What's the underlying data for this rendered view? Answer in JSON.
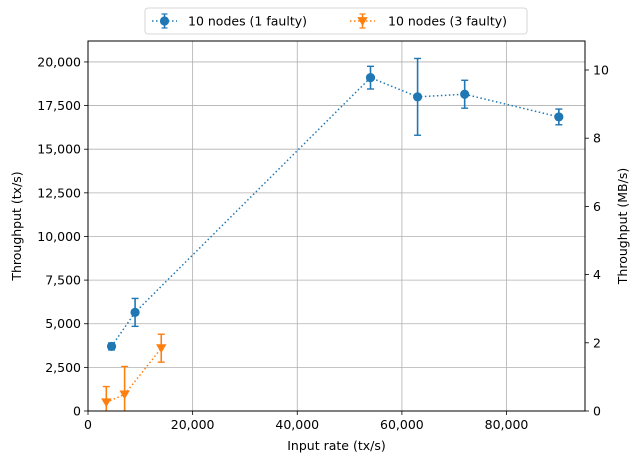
{
  "chart_data": {
    "type": "scatter",
    "title": "",
    "xlabel": "Input rate (tx/s)",
    "ylabel": "Throughput (tx/s)",
    "ylabel_right": "Throughput (MB/s)",
    "xlim": [
      0,
      95000
    ],
    "ylim": [
      0,
      21200
    ],
    "ylim_right": [
      0,
      10.85
    ],
    "x_ticks": [
      0,
      20000,
      40000,
      60000,
      80000
    ],
    "x_tick_labels": [
      "0",
      "20,000",
      "40,000",
      "60,000",
      "80,000"
    ],
    "y_ticks": [
      0,
      2500,
      5000,
      7500,
      10000,
      12500,
      15000,
      17500,
      20000
    ],
    "y_tick_labels": [
      "0",
      "2,500",
      "5,000",
      "7,500",
      "10,000",
      "12,500",
      "15,000",
      "17,500",
      "20,000"
    ],
    "y_right_ticks": [
      0,
      2,
      4,
      6,
      8,
      10
    ],
    "y_right_tick_labels": [
      "0",
      "2",
      "4",
      "6",
      "8",
      "10"
    ],
    "grid": true,
    "legend_position": "top-center, outside",
    "series": [
      {
        "name": "10 nodes (1 faulty)",
        "color": "#1f77b4",
        "marker": "circle",
        "line_style": "dotted",
        "points": [
          {
            "x": 4500,
            "y": 3700,
            "err": 200
          },
          {
            "x": 9000,
            "y": 5650,
            "err": 800
          },
          {
            "x": 54000,
            "y": 19100,
            "err": 650
          },
          {
            "x": 63000,
            "y": 18000,
            "err": 2200
          },
          {
            "x": 72000,
            "y": 18150,
            "err": 800
          },
          {
            "x": 90000,
            "y": 16850,
            "err": 450
          }
        ]
      },
      {
        "name": "10 nodes (3 faulty)",
        "color": "#ff7f0e",
        "marker": "triangle-down",
        "line_style": "dotted",
        "points": [
          {
            "x": 3500,
            "y": 500,
            "err": 900
          },
          {
            "x": 7000,
            "y": 950,
            "err": 1600
          },
          {
            "x": 14000,
            "y": 3600,
            "err": 800
          }
        ]
      }
    ]
  }
}
